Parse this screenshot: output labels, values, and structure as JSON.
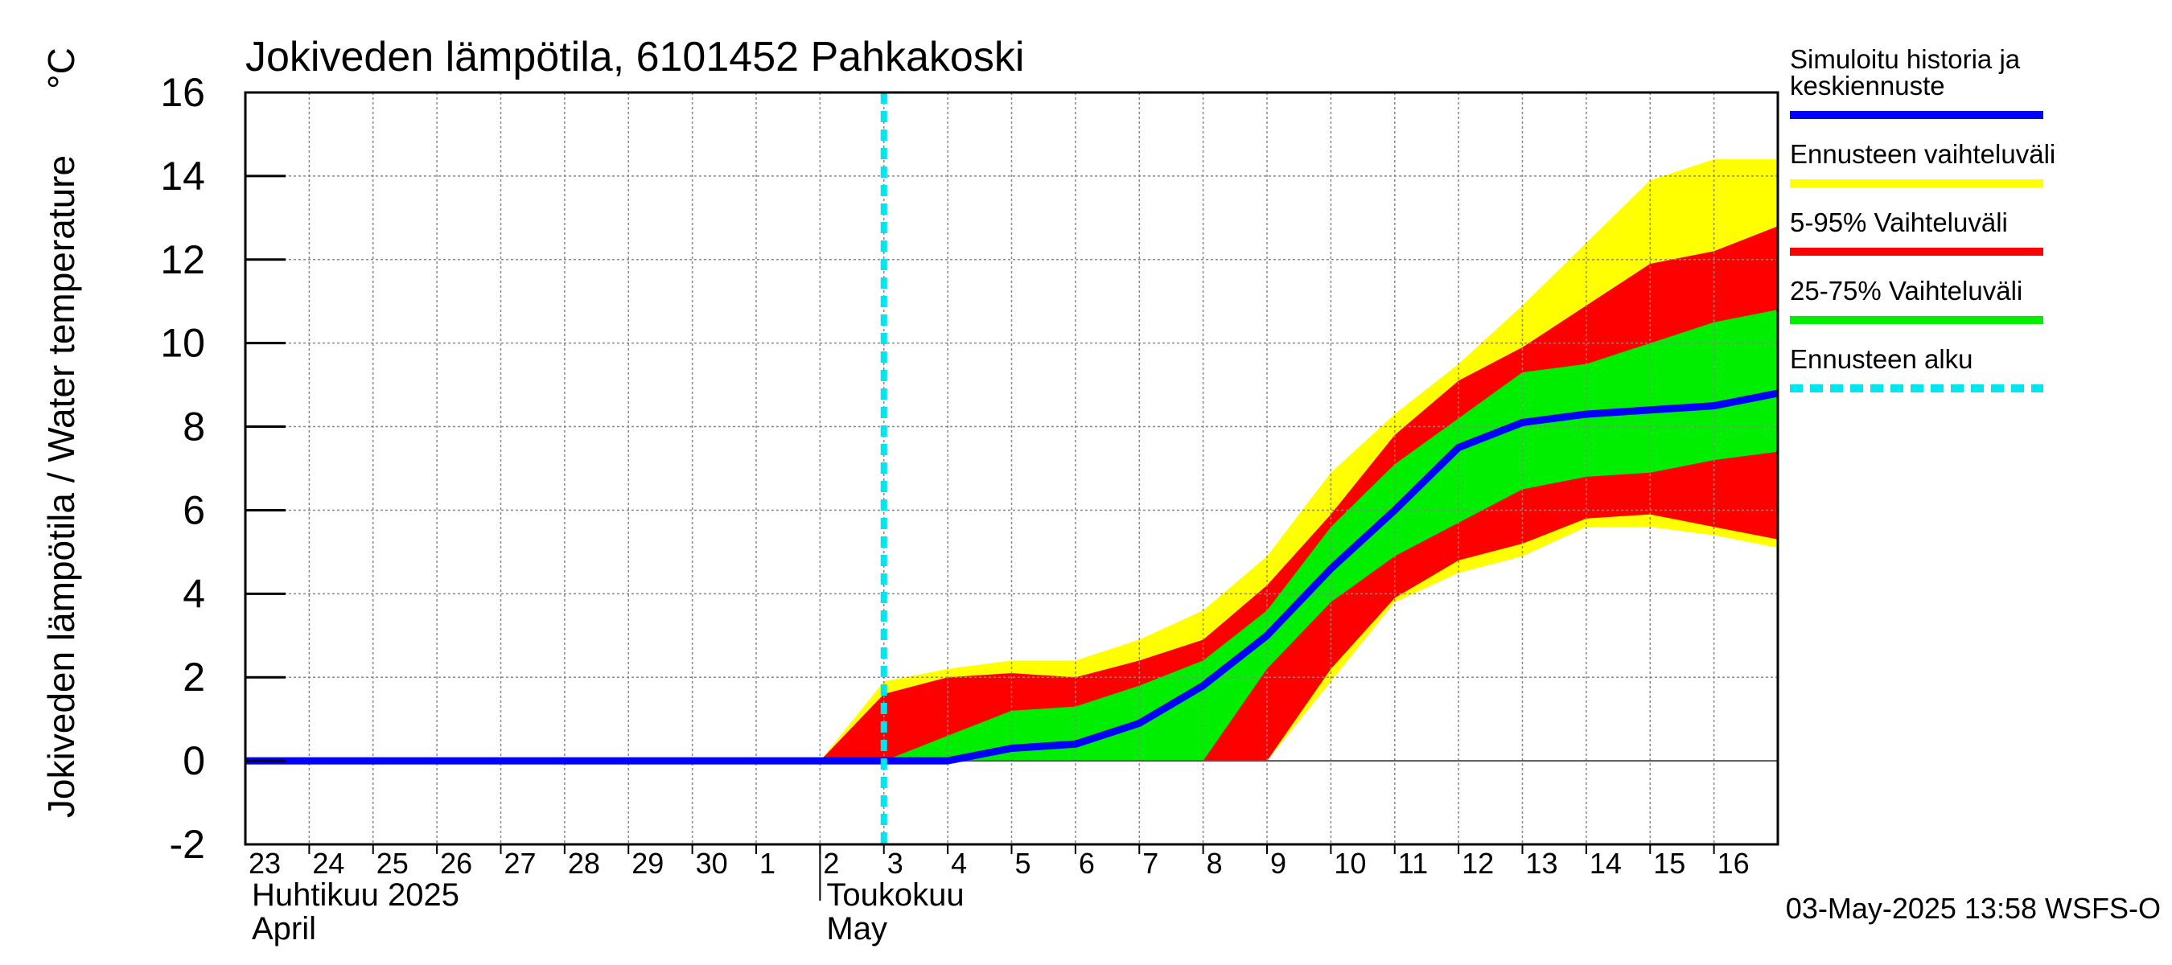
{
  "chart_data": {
    "type": "area",
    "title": "Jokiveden lämpötila, 6101452 Pahkakoski",
    "ylabel": "Jokiveden lämpötila / Water temperature",
    "yunit": "°C",
    "ylim": [
      -2,
      16
    ],
    "yticks": [
      -2,
      0,
      2,
      4,
      6,
      8,
      10,
      12,
      14,
      16
    ],
    "xlim": [
      "2025-04-23",
      "2025-05-17"
    ],
    "x_day_labels": [
      "23",
      "24",
      "25",
      "26",
      "27",
      "28",
      "29",
      "30",
      "1",
      "2",
      "3",
      "4",
      "5",
      "6",
      "7",
      "8",
      "9",
      "10",
      "11",
      "12",
      "13",
      "14",
      "15",
      "16"
    ],
    "month_labels": [
      {
        "fi": "Huhtikuu  2025",
        "en": "April",
        "start": "2025-04-23"
      },
      {
        "fi": "Toukokuu",
        "en": "May",
        "start": "2025-05-02"
      }
    ],
    "grid": true,
    "forecast_start": "2025-05-03T00:00",
    "colors": {
      "median": "#0000ff",
      "range": "#ffff00",
      "p5_95": "#ff0000",
      "p25_75": "#00ee00",
      "forecast_start": "#00e5ee"
    },
    "series": {
      "x": [
        "2025-05-02",
        "2025-05-03",
        "2025-05-04",
        "2025-05-05",
        "2025-05-06",
        "2025-05-07",
        "2025-05-08",
        "2025-05-09",
        "2025-05-10",
        "2025-05-11",
        "2025-05-12",
        "2025-05-13",
        "2025-05-14",
        "2025-05-15",
        "2025-05-16",
        "2025-05-17"
      ],
      "range_max": [
        0.0,
        1.9,
        2.2,
        2.4,
        2.4,
        2.9,
        3.6,
        4.9,
        6.9,
        8.3,
        9.5,
        10.9,
        12.4,
        13.9,
        14.4,
        14.4
      ],
      "range_min": [
        0.0,
        0.0,
        0.0,
        0.0,
        0.0,
        0.0,
        0.0,
        0.0,
        1.9,
        3.8,
        4.5,
        4.9,
        5.6,
        5.6,
        5.4,
        5.1
      ],
      "p95": [
        0.0,
        1.6,
        2.0,
        2.1,
        2.0,
        2.4,
        2.9,
        4.2,
        5.9,
        7.8,
        9.1,
        9.9,
        10.9,
        11.9,
        12.2,
        12.8
      ],
      "p5": [
        0.0,
        0.0,
        0.0,
        0.0,
        0.0,
        0.0,
        0.0,
        0.0,
        2.2,
        3.9,
        4.8,
        5.2,
        5.8,
        5.9,
        5.6,
        5.3
      ],
      "p75": [
        0.0,
        0.0,
        0.6,
        1.2,
        1.3,
        1.8,
        2.4,
        3.6,
        5.6,
        7.1,
        8.2,
        9.3,
        9.5,
        10.0,
        10.5,
        10.8
      ],
      "p25": [
        0.0,
        0.0,
        0.0,
        0.0,
        0.0,
        0.0,
        0.0,
        2.2,
        3.8,
        4.9,
        5.7,
        6.5,
        6.8,
        6.9,
        7.2,
        7.4
      ]
    },
    "median": {
      "x": [
        "2025-04-23",
        "2025-05-02",
        "2025-05-03",
        "2025-05-04",
        "2025-05-05",
        "2025-05-06",
        "2025-05-07",
        "2025-05-08",
        "2025-05-09",
        "2025-05-10",
        "2025-05-11",
        "2025-05-12",
        "2025-05-13",
        "2025-05-14",
        "2025-05-15",
        "2025-05-16",
        "2025-05-17"
      ],
      "y": [
        0.0,
        0.0,
        0.0,
        0.0,
        0.3,
        0.4,
        0.9,
        1.8,
        3.0,
        4.6,
        6.0,
        7.5,
        8.1,
        8.3,
        8.4,
        8.5,
        8.8
      ]
    },
    "legend": {
      "position": "right",
      "items": [
        {
          "key": "median",
          "label_lines": [
            "Simuloitu historia ja",
            "keskiennuste"
          ]
        },
        {
          "key": "range",
          "label_lines": [
            "Ennusteen vaihteluväli"
          ]
        },
        {
          "key": "p5_95",
          "label_lines": [
            "5-95% Vaihteluväli"
          ]
        },
        {
          "key": "p25_75",
          "label_lines": [
            "25-75% Vaihteluväli"
          ]
        },
        {
          "key": "forecast_start",
          "label_lines": [
            "Ennusteen alku"
          ],
          "dashed": true
        }
      ]
    },
    "footer": "03-May-2025 13:58 WSFS-O"
  }
}
